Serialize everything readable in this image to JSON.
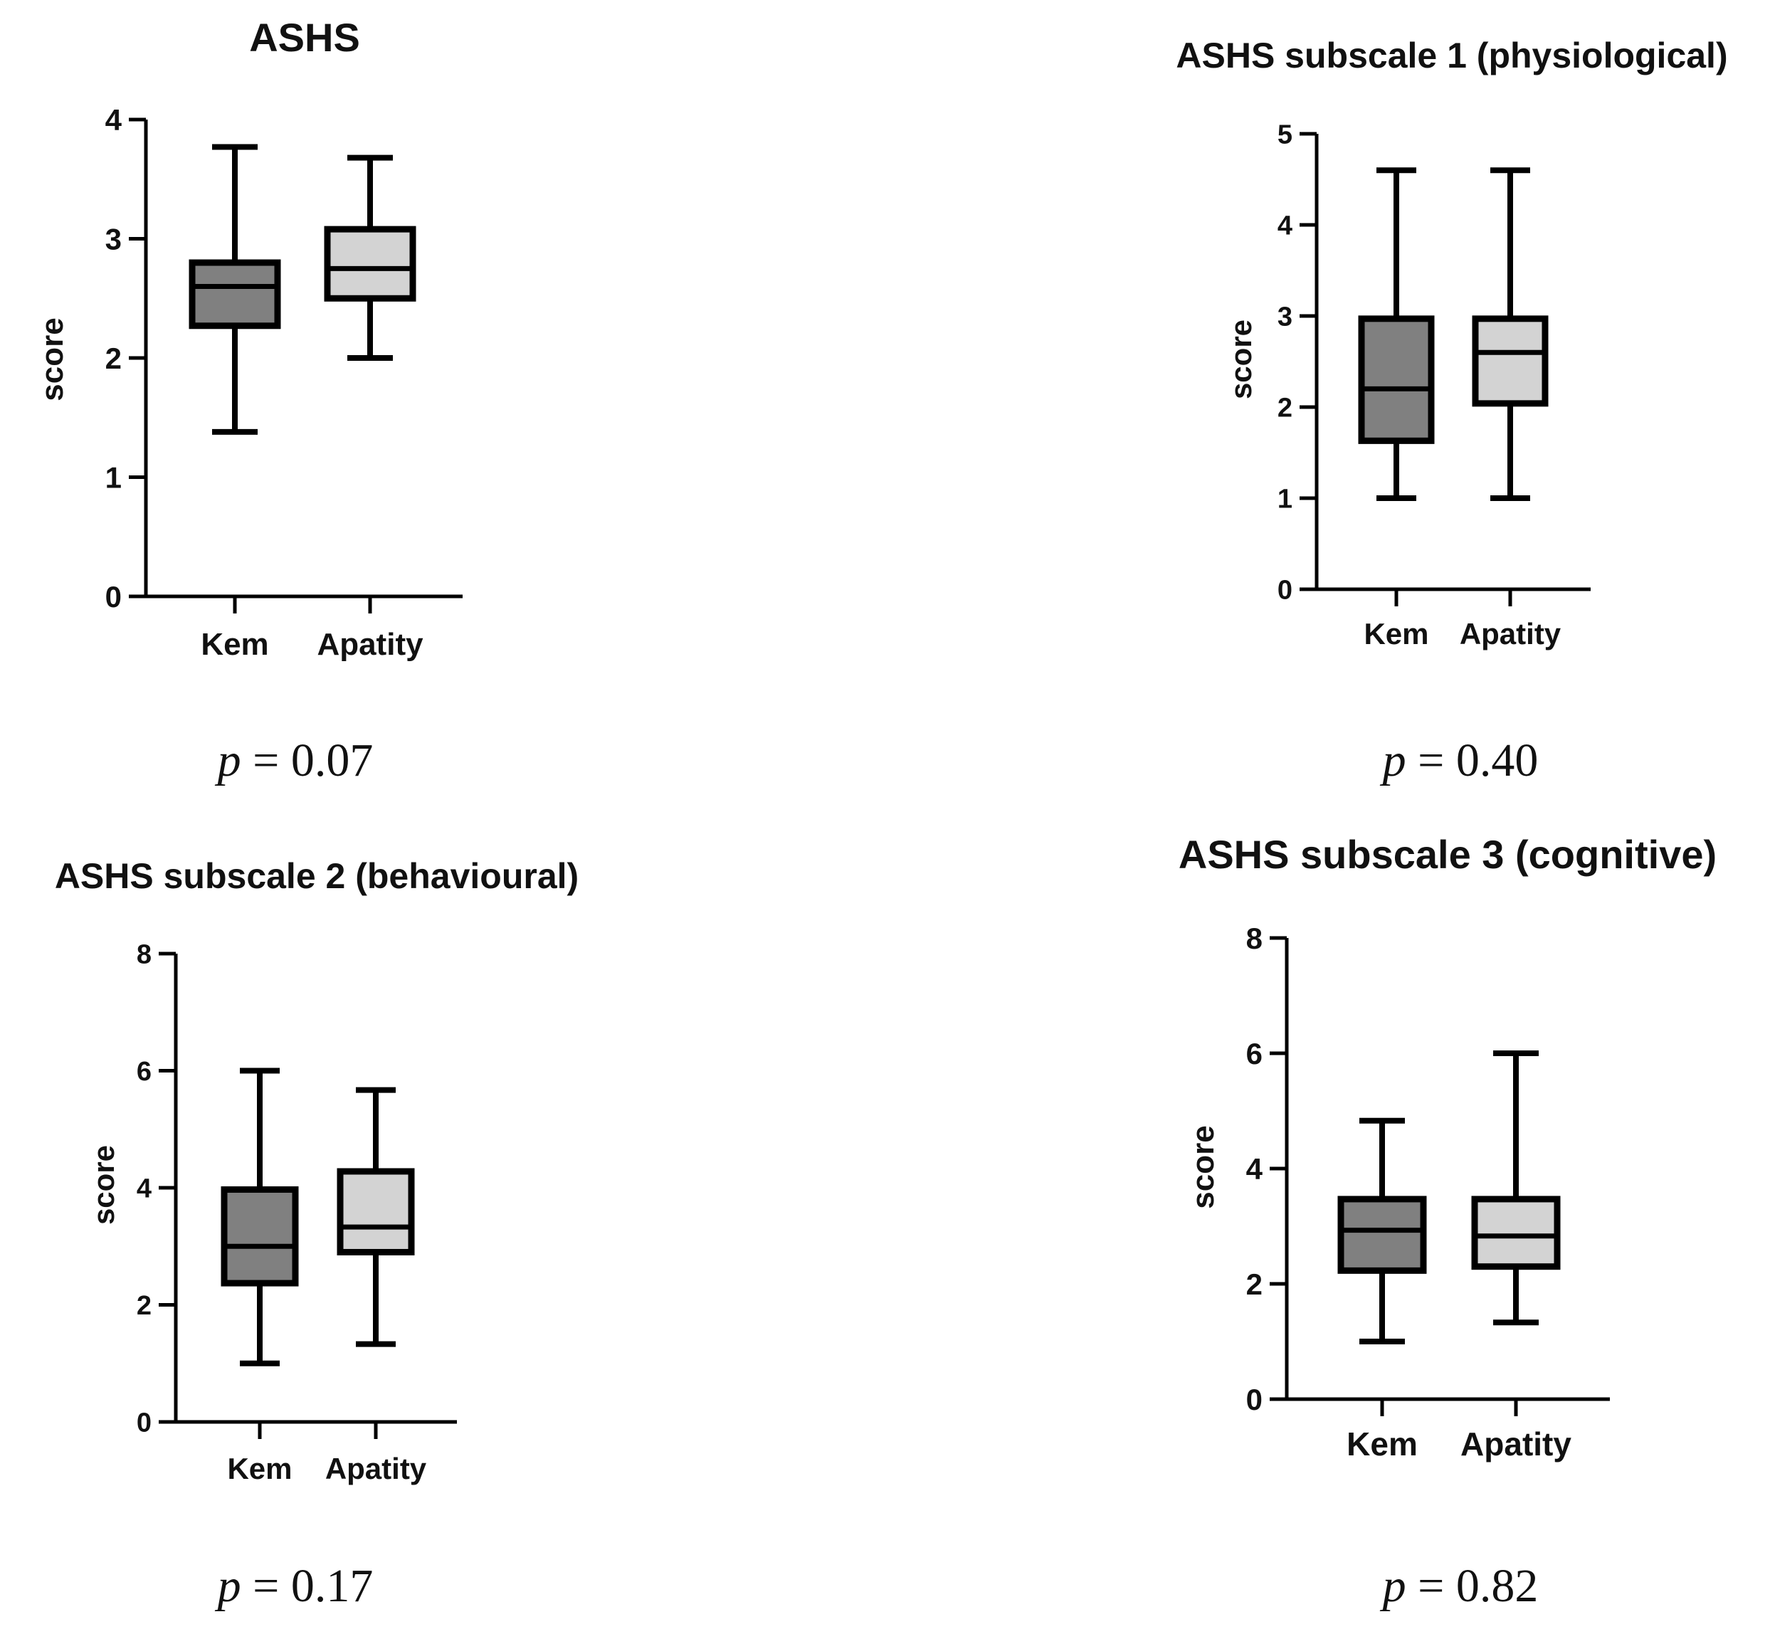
{
  "colors": {
    "kem_fill": "#808080",
    "apatity_fill": "#d3d3d3",
    "stroke": "#000000"
  },
  "chart_data": [
    {
      "type": "box",
      "title": "ASHS",
      "ylabel": "score",
      "categories": [
        "Kem",
        "Apatity"
      ],
      "yticks": [
        0,
        1,
        2,
        3,
        4
      ],
      "ylim": [
        0,
        4
      ],
      "boxes": [
        {
          "name": "Kem",
          "min": 1.38,
          "q1": 2.27,
          "median": 2.6,
          "q3": 2.8,
          "max": 3.77
        },
        {
          "name": "Apatity",
          "min": 2.0,
          "q1": 2.5,
          "median": 2.75,
          "q3": 3.08,
          "max": 3.68
        }
      ],
      "p_label": "p",
      "p_value": "= 0.07"
    },
    {
      "type": "box",
      "title": "ASHS subscale 1 (physiological)",
      "ylabel": "score",
      "categories": [
        "Kem",
        "Apatity"
      ],
      "yticks": [
        0,
        1,
        2,
        3,
        4,
        5
      ],
      "ylim": [
        0,
        5
      ],
      "boxes": [
        {
          "name": "Kem",
          "min": 1.0,
          "q1": 1.63,
          "median": 2.2,
          "q3": 2.97,
          "max": 4.6
        },
        {
          "name": "Apatity",
          "min": 1.0,
          "q1": 2.04,
          "median": 2.6,
          "q3": 2.97,
          "max": 4.6
        }
      ],
      "p_label": "p",
      "p_value": "= 0.40"
    },
    {
      "type": "box",
      "title": "ASHS subscale 2 (behavioural)",
      "ylabel": "score",
      "categories": [
        "Kem",
        "Apatity"
      ],
      "yticks": [
        0,
        2,
        4,
        6,
        8
      ],
      "ylim": [
        0,
        8
      ],
      "boxes": [
        {
          "name": "Kem",
          "min": 1.0,
          "q1": 2.37,
          "median": 3.0,
          "q3": 3.97,
          "max": 6.0
        },
        {
          "name": "Apatity",
          "min": 1.33,
          "q1": 2.9,
          "median": 3.33,
          "q3": 4.28,
          "max": 5.67
        }
      ],
      "p_label": "p",
      "p_value": "= 0.17"
    },
    {
      "type": "box",
      "title": "ASHS subscale 3 (cognitive)",
      "ylabel": "score",
      "categories": [
        "Kem",
        "Apatity"
      ],
      "yticks": [
        0,
        2,
        4,
        6,
        8
      ],
      "ylim": [
        0,
        8
      ],
      "boxes": [
        {
          "name": "Kem",
          "min": 1.0,
          "q1": 2.23,
          "median": 2.93,
          "q3": 3.47,
          "max": 4.83
        },
        {
          "name": "Apatity",
          "min": 1.33,
          "q1": 2.3,
          "median": 2.83,
          "q3": 3.47,
          "max": 6.0
        }
      ],
      "p_label": "p",
      "p_value": "= 0.82"
    }
  ]
}
